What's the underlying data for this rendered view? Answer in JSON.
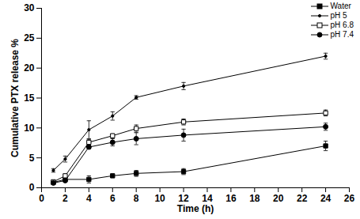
{
  "chart_data": {
    "type": "line",
    "x_label": "Time (h)",
    "y_label": "Cumulative PTX release %",
    "x": [
      1,
      2,
      4,
      6,
      8,
      12,
      24
    ],
    "xlim": [
      0,
      26
    ],
    "xticks": [
      0,
      2,
      4,
      6,
      8,
      10,
      12,
      14,
      16,
      18,
      20,
      22,
      24,
      26
    ],
    "ylim": [
      0,
      30
    ],
    "yticks": [
      0,
      5,
      10,
      15,
      20,
      25,
      30
    ],
    "grid": false,
    "legend": "top-right",
    "series": [
      {
        "name": "Water",
        "color": "#000000",
        "marker": "square",
        "values": [
          0.9,
          1.4,
          1.4,
          2.0,
          2.4,
          2.7,
          7.0
        ],
        "errors": [
          0.2,
          0.3,
          0.6,
          0.3,
          0.5,
          0.5,
          0.8
        ]
      },
      {
        "name": "pH 5",
        "color": "#000000",
        "marker": "dot",
        "values": [
          2.9,
          4.8,
          9.7,
          12.0,
          15.1,
          17.0,
          22.0
        ],
        "errors": [
          0.3,
          0.5,
          1.5,
          0.7,
          0.3,
          0.6,
          0.5
        ]
      },
      {
        "name": "pH 6.8",
        "color": "#000000",
        "marker": "square-open",
        "values": [
          1.0,
          2.0,
          7.6,
          8.7,
          9.9,
          11.0,
          12.5
        ],
        "errors": [
          0.2,
          0.3,
          0.5,
          0.3,
          0.6,
          0.5,
          0.5
        ]
      },
      {
        "name": "pH 7.4",
        "color": "#000000",
        "marker": "circle",
        "values": [
          0.8,
          1.2,
          6.8,
          7.6,
          8.2,
          8.8,
          10.2
        ],
        "errors": [
          0.2,
          0.2,
          0.3,
          0.6,
          1.0,
          1.0,
          0.6
        ]
      }
    ]
  }
}
